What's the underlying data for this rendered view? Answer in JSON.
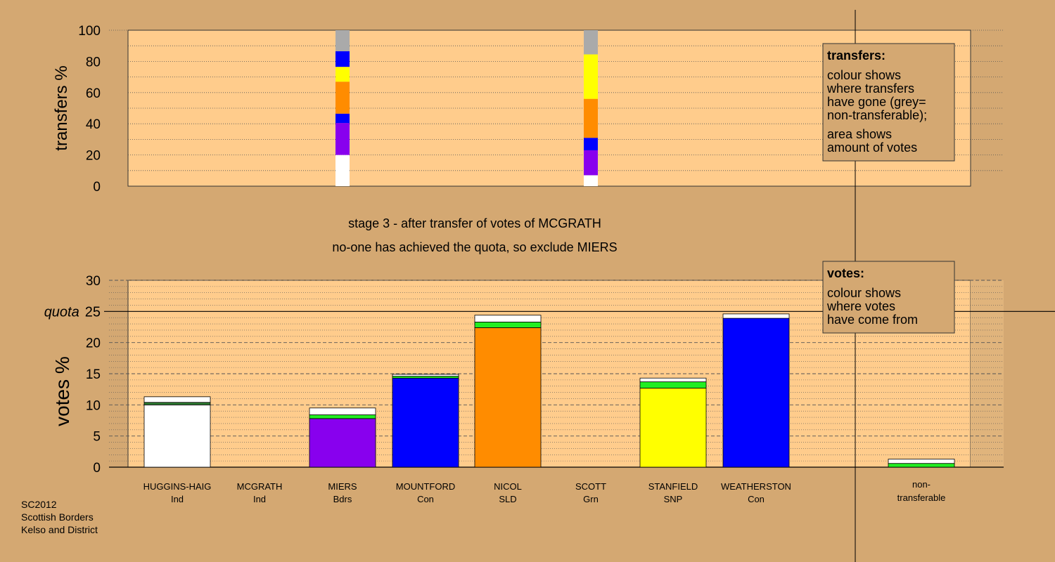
{
  "stage_title": "stage 3 - after transfer of votes of MCGRATH",
  "stage_subtitle": "no-one has achieved the quota, so exclude MIERS",
  "footer": [
    "SC2012",
    "Scottish Borders",
    "Kelso and District"
  ],
  "legend_transfers": {
    "title": "transfers:",
    "lines1": [
      "colour shows",
      "where transfers",
      "have gone (grey=",
      "non-transferable);"
    ],
    "lines2": [
      "area shows",
      "amount of votes"
    ]
  },
  "legend_votes": {
    "title": "votes:",
    "lines": [
      "colour shows",
      "where votes",
      "have come from"
    ]
  },
  "colors": {
    "background": "#d4a872",
    "plot_background": "#ffcc8c",
    "white": "#ffffff",
    "green": "#22ee22",
    "dark_green": "#2e7d32",
    "purple": "#8800ee",
    "blue": "#0000ff",
    "orange": "#ff8c00",
    "yellow": "#ffff00",
    "grey": "#aaaaaa"
  },
  "chart_data": [
    {
      "type": "bar",
      "name": "transfers",
      "ylabel": "transfers %",
      "ylim": [
        0,
        100
      ],
      "yticks": [
        0,
        20,
        40,
        60,
        80,
        100
      ],
      "stacks": [
        {
          "position": "MIERS",
          "segments": [
            {
              "color": "white",
              "value": 20
            },
            {
              "color": "purple",
              "value": 20.5
            },
            {
              "color": "blue",
              "value": 6
            },
            {
              "color": "orange",
              "value": 20.5
            },
            {
              "color": "yellow",
              "value": 9.5
            },
            {
              "color": "blue",
              "value": 10
            },
            {
              "color": "grey",
              "value": 13.5
            }
          ]
        },
        {
          "position": "SCOTT",
          "segments": [
            {
              "color": "white",
              "value": 7
            },
            {
              "color": "purple",
              "value": 16
            },
            {
              "color": "blue",
              "value": 8
            },
            {
              "color": "orange",
              "value": 25
            },
            {
              "color": "yellow",
              "value": 28.5
            },
            {
              "color": "grey",
              "value": 15.5
            }
          ]
        }
      ]
    },
    {
      "type": "bar",
      "name": "votes",
      "ylabel": "votes %",
      "ylim": [
        0,
        30
      ],
      "yticks": [
        0,
        5,
        10,
        15,
        20,
        25,
        30
      ],
      "quota": 25,
      "quota_label": "quota",
      "candidates": [
        {
          "name": "HUGGINS-HAIG",
          "party": "Ind",
          "segments": [
            {
              "color": "white",
              "value": 10
            },
            {
              "color": "dark_green",
              "value": 0.4
            },
            {
              "color": "white",
              "value": 0.9
            }
          ]
        },
        {
          "name": "MCGRATH",
          "party": "Ind",
          "segments": []
        },
        {
          "name": "MIERS",
          "party": "Bdrs",
          "segments": [
            {
              "color": "purple",
              "value": 7.8
            },
            {
              "color": "green",
              "value": 0.6
            },
            {
              "color": "white",
              "value": 1.1
            }
          ]
        },
        {
          "name": "MOUNTFORD",
          "party": "Con",
          "segments": [
            {
              "color": "blue",
              "value": 14.3
            },
            {
              "color": "green",
              "value": 0.3
            },
            {
              "color": "white",
              "value": 0.3
            }
          ]
        },
        {
          "name": "NICOL",
          "party": "SLD",
          "segments": [
            {
              "color": "orange",
              "value": 22.4
            },
            {
              "color": "green",
              "value": 0.9
            },
            {
              "color": "white",
              "value": 1.1
            }
          ]
        },
        {
          "name": "SCOTT",
          "party": "Grn",
          "segments": []
        },
        {
          "name": "STANFIELD",
          "party": "SNP",
          "segments": [
            {
              "color": "yellow",
              "value": 12.7
            },
            {
              "color": "green",
              "value": 1
            },
            {
              "color": "white",
              "value": 0.6
            }
          ]
        },
        {
          "name": "WEATHERSTON",
          "party": "Con",
          "segments": [
            {
              "color": "blue",
              "value": 23.9
            },
            {
              "color": "white",
              "value": 0.7
            }
          ]
        }
      ],
      "nontransferable": {
        "label_lines": [
          "non-",
          "transferable"
        ],
        "segments": [
          {
            "color": "green",
            "value": 0.6
          },
          {
            "color": "white",
            "value": 0.7
          }
        ]
      }
    }
  ]
}
